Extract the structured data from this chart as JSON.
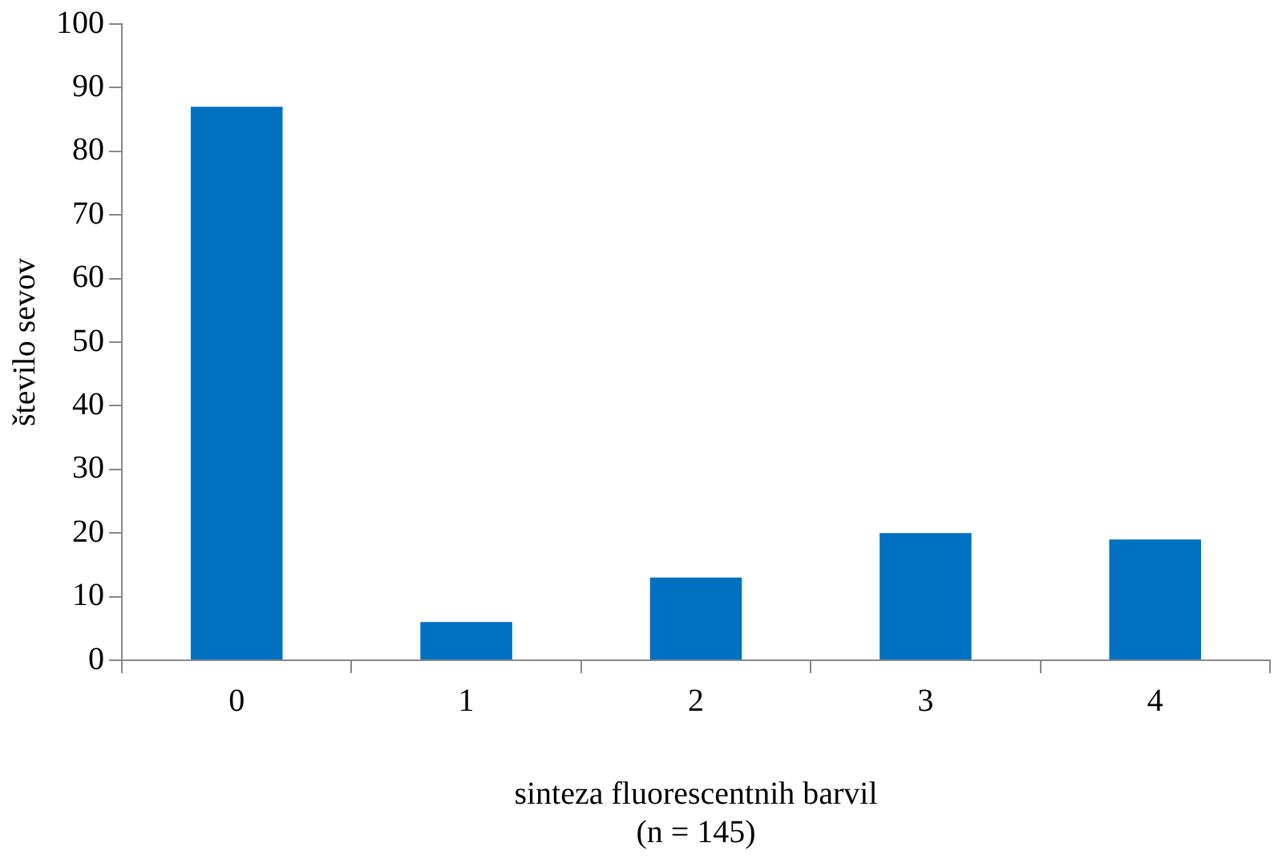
{
  "chart_data": {
    "type": "bar",
    "xlabel": "sinteza fluorescentnih barvil\n(n = 145)",
    "ylabel": "število sevov",
    "categories": [
      "0",
      "1",
      "2",
      "3",
      "4"
    ],
    "values": [
      87,
      6,
      13,
      20,
      19
    ],
    "color": "#0070c0",
    "ylim": [
      0,
      100
    ],
    "yticks": [
      0,
      10,
      20,
      30,
      40,
      50,
      60,
      70,
      80,
      90,
      100
    ],
    "grid": false,
    "legend": false
  }
}
